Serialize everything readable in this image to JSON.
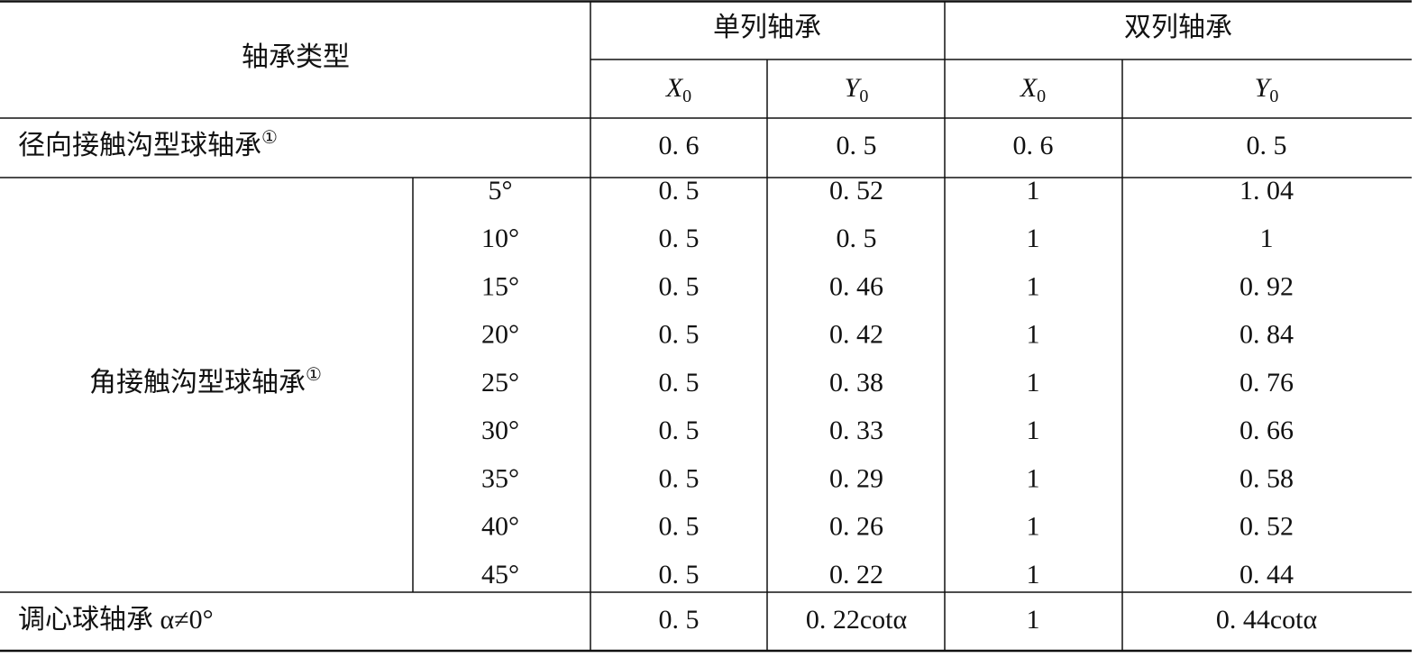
{
  "header": {
    "title": "轴承类型",
    "groups": [
      "单列轴承",
      "双列轴承"
    ],
    "columns": [
      {
        "symbol": "X",
        "subscript": "0"
      },
      {
        "symbol": "Y",
        "subscript": "0"
      },
      {
        "symbol": "X",
        "subscript": "0"
      },
      {
        "symbol": "Y",
        "subscript": "0"
      }
    ]
  },
  "radial": {
    "label": "径向接触沟型球轴承",
    "note": "①",
    "values": [
      "0. 6",
      "0. 5",
      "0. 6",
      "0. 5"
    ]
  },
  "angular": {
    "label": "角接触沟型球轴承",
    "note": "①",
    "rows": [
      {
        "angle": "5°",
        "values": [
          "0. 5",
          "0. 52",
          "1",
          "1. 04"
        ]
      },
      {
        "angle": "10°",
        "values": [
          "0. 5",
          "0. 5",
          "1",
          "1"
        ]
      },
      {
        "angle": "15°",
        "values": [
          "0. 5",
          "0. 46",
          "1",
          "0. 92"
        ]
      },
      {
        "angle": "20°",
        "values": [
          "0. 5",
          "0. 42",
          "1",
          "0. 84"
        ]
      },
      {
        "angle": "25°",
        "values": [
          "0. 5",
          "0. 38",
          "1",
          "0. 76"
        ]
      },
      {
        "angle": "30°",
        "values": [
          "0. 5",
          "0. 33",
          "1",
          "0. 66"
        ]
      },
      {
        "angle": "35°",
        "values": [
          "0. 5",
          "0. 29",
          "1",
          "0. 58"
        ]
      },
      {
        "angle": "40°",
        "values": [
          "0. 5",
          "0. 26",
          "1",
          "0. 52"
        ]
      },
      {
        "angle": "45°",
        "values": [
          "0. 5",
          "0. 22",
          "1",
          "0. 44"
        ]
      }
    ]
  },
  "self_aligning": {
    "label": "调心球轴承 α≠0°",
    "values": [
      "0. 5",
      "0. 22cotα",
      "1",
      "0. 44cotα"
    ]
  }
}
